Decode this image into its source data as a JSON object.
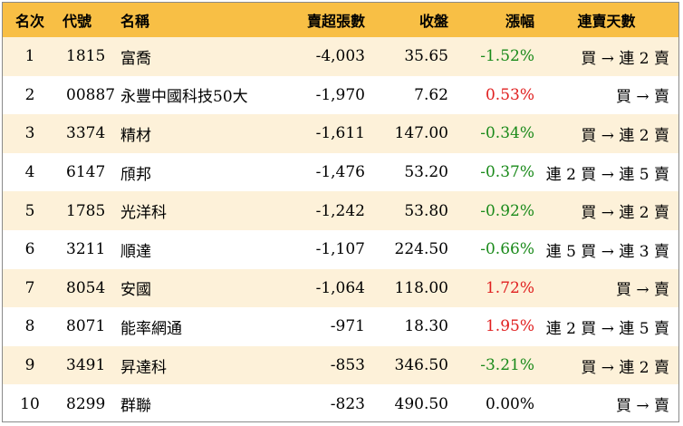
{
  "headers": {
    "rank": "名次",
    "code": "代號",
    "name": "名稱",
    "sell_excess": "賣超張數",
    "close": "收盤",
    "change": "漲幅",
    "streak": "連賣天數"
  },
  "rows": [
    {
      "rank": "1",
      "code": "1815",
      "name": "富喬",
      "sell_excess": "-4,003",
      "close": "35.65",
      "change": "-1.52%",
      "change_dir": "neg",
      "streak": "買 → 連 2 賣"
    },
    {
      "rank": "2",
      "code": "00887",
      "name": "永豐中國科技50大",
      "sell_excess": "-1,970",
      "close": "7.62",
      "change": "0.53%",
      "change_dir": "pos",
      "streak": "買 → 賣"
    },
    {
      "rank": "3",
      "code": "3374",
      "name": "精材",
      "sell_excess": "-1,611",
      "close": "147.00",
      "change": "-0.34%",
      "change_dir": "neg",
      "streak": "買 → 連 2 賣"
    },
    {
      "rank": "4",
      "code": "6147",
      "name": "頎邦",
      "sell_excess": "-1,476",
      "close": "53.20",
      "change": "-0.37%",
      "change_dir": "neg",
      "streak": "連 2 買 → 連 5 賣"
    },
    {
      "rank": "5",
      "code": "1785",
      "name": "光洋科",
      "sell_excess": "-1,242",
      "close": "53.80",
      "change": "-0.92%",
      "change_dir": "neg",
      "streak": "買 → 連 2 賣"
    },
    {
      "rank": "6",
      "code": "3211",
      "name": "順達",
      "sell_excess": "-1,107",
      "close": "224.50",
      "change": "-0.66%",
      "change_dir": "neg",
      "streak": "連 5 買 → 連 3 賣"
    },
    {
      "rank": "7",
      "code": "8054",
      "name": "安國",
      "sell_excess": "-1,064",
      "close": "118.00",
      "change": "1.72%",
      "change_dir": "pos",
      "streak": "買 → 賣"
    },
    {
      "rank": "8",
      "code": "8071",
      "name": "能率網通",
      "sell_excess": "-971",
      "close": "18.30",
      "change": "1.95%",
      "change_dir": "pos",
      "streak": "連 2 買 → 連 5 賣"
    },
    {
      "rank": "9",
      "code": "3491",
      "name": "昇達科",
      "sell_excess": "-853",
      "close": "346.50",
      "change": "-3.21%",
      "change_dir": "neg",
      "streak": "買 → 連 2 賣"
    },
    {
      "rank": "10",
      "code": "8299",
      "name": "群聯",
      "sell_excess": "-823",
      "close": "490.50",
      "change": "0.00%",
      "change_dir": "flat",
      "streak": "買 → 賣"
    }
  ],
  "colors": {
    "header_bg": "#f8bf45",
    "odd_row_bg": "#fdf1d9",
    "negative": "#1a8a1a",
    "positive": "#e02020"
  }
}
